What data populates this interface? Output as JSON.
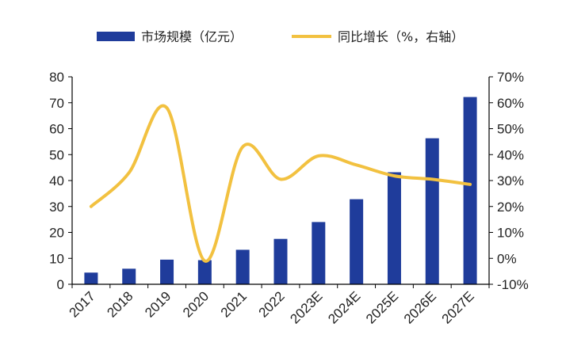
{
  "chart_data": {
    "type": "bar+line",
    "categories": [
      "2017",
      "2018",
      "2019",
      "2020",
      "2021",
      "2022",
      "2023E",
      "2024E",
      "2025E",
      "2026E",
      "2027E"
    ],
    "series": [
      {
        "name": "市场规模（亿元）",
        "type": "bar",
        "axis": "left",
        "values": [
          4.5,
          6,
          9.5,
          9.3,
          13.3,
          17.5,
          24,
          32.8,
          43.2,
          56.3,
          72.2
        ]
      },
      {
        "name": "同比增长（%，右轴）",
        "type": "line",
        "axis": "right",
        "values": [
          20,
          33,
          58,
          -1,
          43,
          30.5,
          39.5,
          36,
          31.8,
          30.5,
          28.5
        ]
      }
    ],
    "y_left": {
      "min": 0,
      "max": 80,
      "step": 10,
      "ticks": [
        "0",
        "10",
        "20",
        "30",
        "40",
        "50",
        "60",
        "70",
        "80"
      ]
    },
    "y_right": {
      "min": -10,
      "max": 70,
      "step": 10,
      "ticks": [
        "-10%",
        "0%",
        "10%",
        "20%",
        "30%",
        "40%",
        "50%",
        "60%",
        "70%"
      ]
    },
    "grid": false,
    "legend_position": "top",
    "colors": {
      "bar": "#1F3C9B",
      "line": "#F2C140",
      "axis": "#000000"
    }
  }
}
